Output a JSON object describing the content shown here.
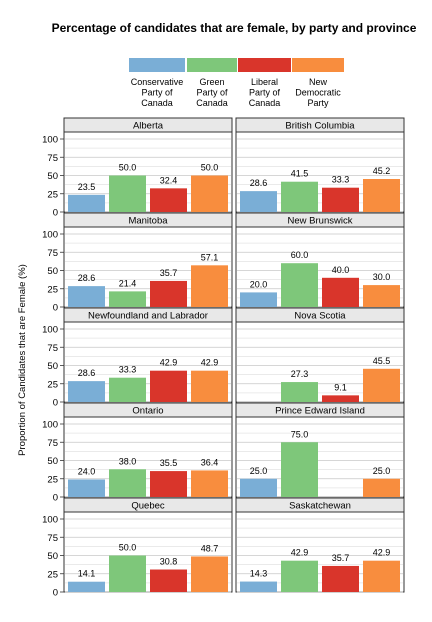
{
  "chart_data": {
    "type": "bar",
    "title": "Percentage of candidates that are female, by party and province",
    "ylabel": "Proportion of Candidates that are Female (%)",
    "xlabel": "",
    "ylim": [
      0,
      100
    ],
    "yticks": [
      0,
      25,
      50,
      75,
      100
    ],
    "grid": true,
    "legend_position": "top",
    "series": [
      {
        "name": "Conservative Party of Canada",
        "label_lines": [
          "Conservative",
          "Party of",
          "Canada"
        ],
        "color": "#7aaed6"
      },
      {
        "name": "Green Party of Canada",
        "label_lines": [
          "Green",
          "Party of",
          "Canada"
        ],
        "color": "#7ec77a"
      },
      {
        "name": "Liberal Party of Canada",
        "label_lines": [
          "Liberal",
          "Party of",
          "Canada"
        ],
        "color": "#d9352b"
      },
      {
        "name": "New Democratic Party",
        "label_lines": [
          "New",
          "Democratic",
          "Party"
        ],
        "color": "#f88d3e"
      }
    ],
    "panels": [
      {
        "province": "Alberta",
        "values": [
          23.5,
          50.0,
          32.4,
          50.0
        ],
        "labels": [
          "23.5",
          "50.0",
          "32.4",
          "50.0"
        ]
      },
      {
        "province": "British Columbia",
        "values": [
          28.6,
          41.5,
          33.3,
          45.2
        ],
        "labels": [
          "28.6",
          "41.5",
          "33.3",
          "45.2"
        ]
      },
      {
        "province": "Manitoba",
        "values": [
          28.6,
          21.4,
          35.7,
          57.1
        ],
        "labels": [
          "28.6",
          "21.4",
          "35.7",
          "57.1"
        ]
      },
      {
        "province": "New Brunswick",
        "values": [
          20.0,
          60.0,
          40.0,
          30.0
        ],
        "labels": [
          "20.0",
          "60.0",
          "40.0",
          "30.0"
        ]
      },
      {
        "province": "Newfoundland and Labrador",
        "values": [
          28.6,
          33.3,
          42.9,
          42.9
        ],
        "labels": [
          "28.6",
          "33.3",
          "42.9",
          "42.9"
        ]
      },
      {
        "province": "Nova Scotia",
        "values": [
          null,
          27.3,
          9.1,
          45.5
        ],
        "labels": [
          "",
          "27.3",
          "9.1",
          "45.5"
        ]
      },
      {
        "province": "Ontario",
        "values": [
          24.0,
          38.0,
          35.5,
          36.4
        ],
        "labels": [
          "24.0",
          "38.0",
          "35.5",
          "36.4"
        ]
      },
      {
        "province": "Prince Edward Island",
        "values": [
          25.0,
          75.0,
          null,
          25.0
        ],
        "labels": [
          "25.0",
          "75.0",
          "",
          "25.0"
        ]
      },
      {
        "province": "Quebec",
        "values": [
          14.1,
          50.0,
          30.8,
          48.7
        ],
        "labels": [
          "14.1",
          "50.0",
          "30.8",
          "48.7"
        ]
      },
      {
        "province": "Saskatchewan",
        "values": [
          14.3,
          42.9,
          35.7,
          42.9
        ],
        "labels": [
          "14.3",
          "42.9",
          "35.7",
          "42.9"
        ]
      }
    ]
  }
}
